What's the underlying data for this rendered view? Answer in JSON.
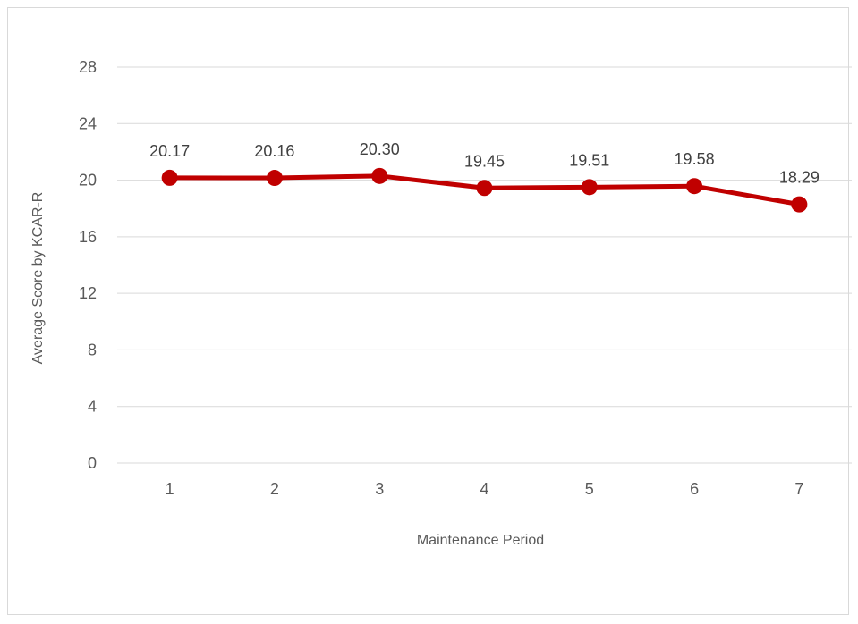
{
  "chart_data": {
    "type": "line",
    "title": "",
    "xlabel": "Maintenance Period",
    "ylabel": "Average Score by KCAR-R",
    "categories": [
      "1",
      "2",
      "3",
      "4",
      "5",
      "6",
      "7"
    ],
    "series": [
      {
        "values": [
          20.17,
          20.16,
          20.3,
          19.45,
          19.51,
          19.58,
          18.29
        ],
        "labels": [
          "20.17",
          "20.16",
          "20.30",
          "19.45",
          "19.51",
          "19.58",
          "18.29"
        ],
        "color": "#c00000"
      }
    ],
    "ylim": [
      0,
      28
    ],
    "yticks": [
      0,
      4,
      8,
      12,
      16,
      20,
      24,
      28
    ],
    "grid": "horizontal",
    "legend": "none"
  }
}
